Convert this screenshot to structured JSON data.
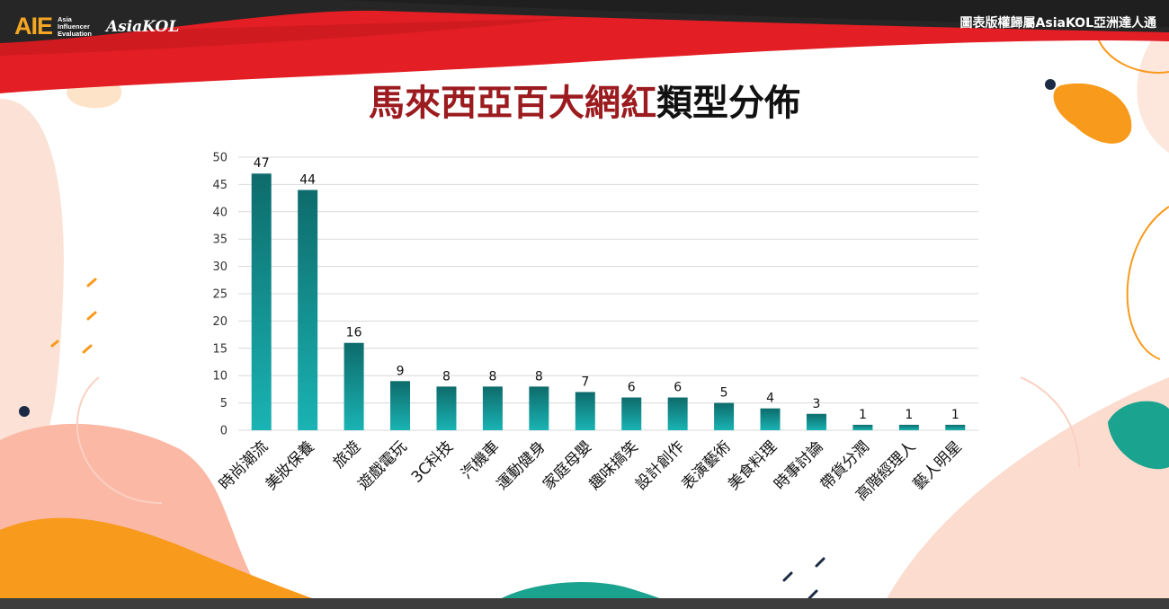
{
  "header": {
    "logo_text": "AIE",
    "logo_subtitle": [
      "Asia",
      "Influencer",
      "Evaluation"
    ],
    "brand": "AsiaKOL",
    "copyright": "圖表版權歸屬AsiaKOL亞洲達人通"
  },
  "title": {
    "highlight": "馬來西亞百大網紅",
    "rest": "類型分佈"
  },
  "colors": {
    "header_red": "#e31e24",
    "header_dark": "#262626",
    "title_red": "#9b1b1f",
    "bar_top": "#0e6b6b",
    "bar_bottom": "#1ab3b3",
    "orange": "#f89a1c",
    "peach": "#fbd9cd",
    "teal": "#1aa38e"
  },
  "chart_data": {
    "type": "bar",
    "categories": [
      "時尚潮流",
      "美妝保養",
      "旅遊",
      "遊戲電玩",
      "3C科技",
      "汽機車",
      "運動健身",
      "家庭母嬰",
      "趣味搞笑",
      "設計創作",
      "表演藝術",
      "美食料理",
      "時事討論",
      "帶貨分潤",
      "高階經理人",
      "藝人明星"
    ],
    "values": [
      47,
      44,
      16,
      9,
      8,
      8,
      8,
      7,
      6,
      6,
      5,
      4,
      3,
      1,
      1,
      1
    ],
    "ylim": [
      0,
      50
    ],
    "yticks": [
      0,
      5,
      10,
      15,
      20,
      25,
      30,
      35,
      40,
      45,
      50
    ],
    "grid": true,
    "data_labels": true
  }
}
